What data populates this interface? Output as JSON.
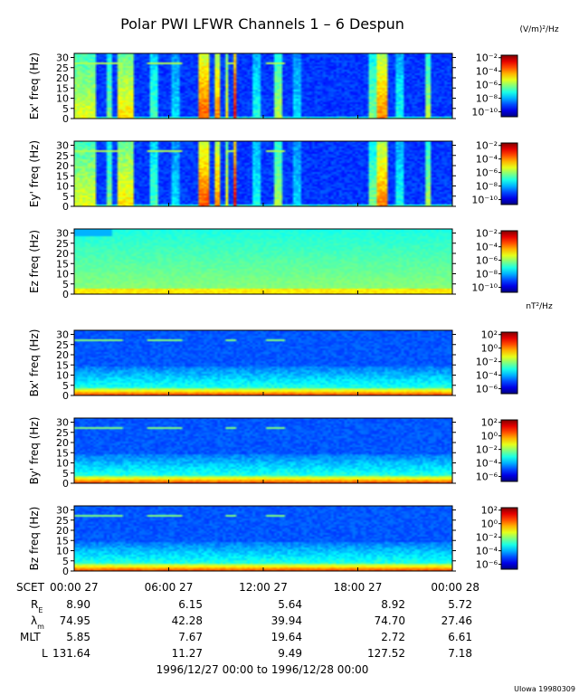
{
  "chart_data": {
    "type": "heatmap",
    "title": "Polar PWI LFWR Channels 1 – 6 Despun",
    "panels": [
      {
        "ylabel": "Ex' freq (Hz)",
        "yticks": [
          "0",
          "5",
          "10",
          "15",
          "20",
          "25",
          "30"
        ],
        "ylim": [
          0,
          32
        ],
        "colorbar_unit": "(V/m)²/Hz",
        "colorbar_ticks": [
          "10⁻²",
          "10⁻⁴",
          "10⁻⁶",
          "10⁻⁸",
          "10⁻¹⁰"
        ],
        "clim": [
          1e-10,
          0.01
        ],
        "scale": "log",
        "pattern": "electric"
      },
      {
        "ylabel": "Ey' freq (Hz)",
        "yticks": [
          "0",
          "5",
          "10",
          "15",
          "20",
          "25",
          "30"
        ],
        "ylim": [
          0,
          32
        ],
        "colorbar_unit": "",
        "colorbar_ticks": [
          "10⁻²",
          "10⁻⁴",
          "10⁻⁶",
          "10⁻⁸",
          "10⁻¹⁰"
        ],
        "clim": [
          1e-10,
          0.01
        ],
        "scale": "log",
        "pattern": "electric"
      },
      {
        "ylabel": "Ez freq (Hz)",
        "yticks": [
          "0",
          "5",
          "10",
          "15",
          "20",
          "25",
          "30"
        ],
        "ylim": [
          0,
          32
        ],
        "colorbar_unit": "",
        "colorbar_ticks": [
          "10⁻²",
          "10⁻⁴",
          "10⁻⁶",
          "10⁻⁸",
          "10⁻¹⁰"
        ],
        "clim": [
          1e-10,
          0.01
        ],
        "scale": "log",
        "pattern": "ez"
      },
      {
        "ylabel": "Bx' freq (Hz)",
        "yticks": [
          "0",
          "5",
          "10",
          "15",
          "20",
          "25",
          "30"
        ],
        "ylim": [
          0,
          32
        ],
        "colorbar_unit": "nT²/Hz",
        "colorbar_ticks": [
          "10²",
          "10⁰",
          "10⁻²",
          "10⁻⁴",
          "10⁻⁶"
        ],
        "clim": [
          1e-06,
          100.0
        ],
        "scale": "log",
        "pattern": "magnetic"
      },
      {
        "ylabel": "By' freq (Hz)",
        "yticks": [
          "0",
          "5",
          "10",
          "15",
          "20",
          "25",
          "30"
        ],
        "ylim": [
          0,
          32
        ],
        "colorbar_unit": "",
        "colorbar_ticks": [
          "10²",
          "10⁰",
          "10⁻²",
          "10⁻⁴",
          "10⁻⁶"
        ],
        "clim": [
          1e-06,
          100.0
        ],
        "scale": "log",
        "pattern": "magnetic"
      },
      {
        "ylabel": "Bz freq (Hz)",
        "yticks": [
          "0",
          "5",
          "10",
          "15",
          "20",
          "25",
          "30"
        ],
        "ylim": [
          0,
          32
        ],
        "colorbar_unit": "",
        "colorbar_ticks": [
          "10²",
          "10⁰",
          "10⁻²",
          "10⁻⁴",
          "10⁻⁶"
        ],
        "clim": [
          1e-06,
          100.0
        ],
        "scale": "log",
        "pattern": "magnetic"
      }
    ],
    "x_tick_labels": [
      "00:00 27",
      "06:00 27",
      "12:00 27",
      "18:00 27",
      "00:00 28"
    ],
    "x_hours": [
      0,
      6,
      12,
      18,
      24
    ],
    "ephemeris": {
      "SCET": [
        "00:00 27",
        "06:00 27",
        "12:00 27",
        "18:00 27",
        "00:00 28"
      ],
      "RE": [
        "8.90",
        "6.15",
        "5.64",
        "8.92",
        "5.72"
      ],
      "lambda_m": [
        "74.95",
        "42.28",
        "39.94",
        "74.70",
        "27.46"
      ],
      "MLT": [
        "5.85",
        "7.67",
        "19.64",
        "2.72",
        "6.61"
      ],
      "L": [
        "131.64",
        "11.27",
        "9.49",
        "127.52",
        "7.18"
      ]
    },
    "date_range": "1996/12/27 00:00 to 1996/12/28 00:00",
    "footer": "UIowa 19980309"
  },
  "ephem_labels": {
    "scet": "SCET",
    "re": "R",
    "re_sub": "E",
    "lambda": "λ",
    "lambda_sub": "m",
    "mlt": "MLT",
    "l": "L"
  }
}
